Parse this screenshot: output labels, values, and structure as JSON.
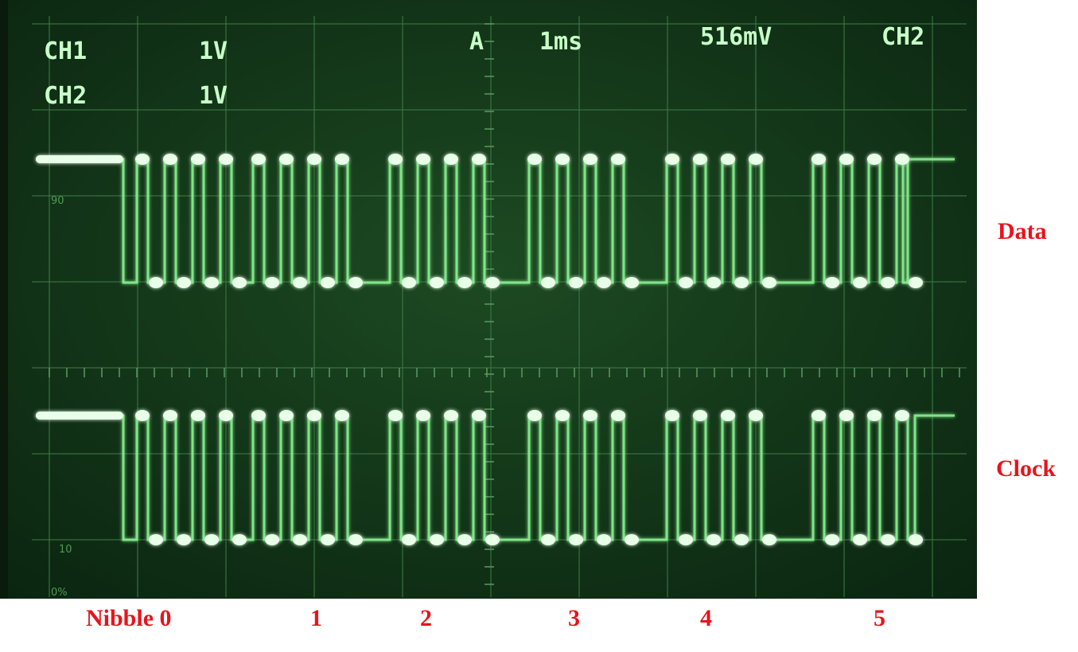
{
  "screen": {
    "readouts": [
      "CH1",
      "1V",
      "CH2",
      "1V",
      "A",
      "1ms",
      "516mV",
      "CH2"
    ],
    "graticule_labels": [
      "90",
      "10",
      "0%"
    ]
  },
  "traces": [
    "Data",
    "Clock"
  ],
  "nibbles": [
    "Nibble 0",
    "1",
    "2",
    "3",
    "4",
    "5"
  ]
}
